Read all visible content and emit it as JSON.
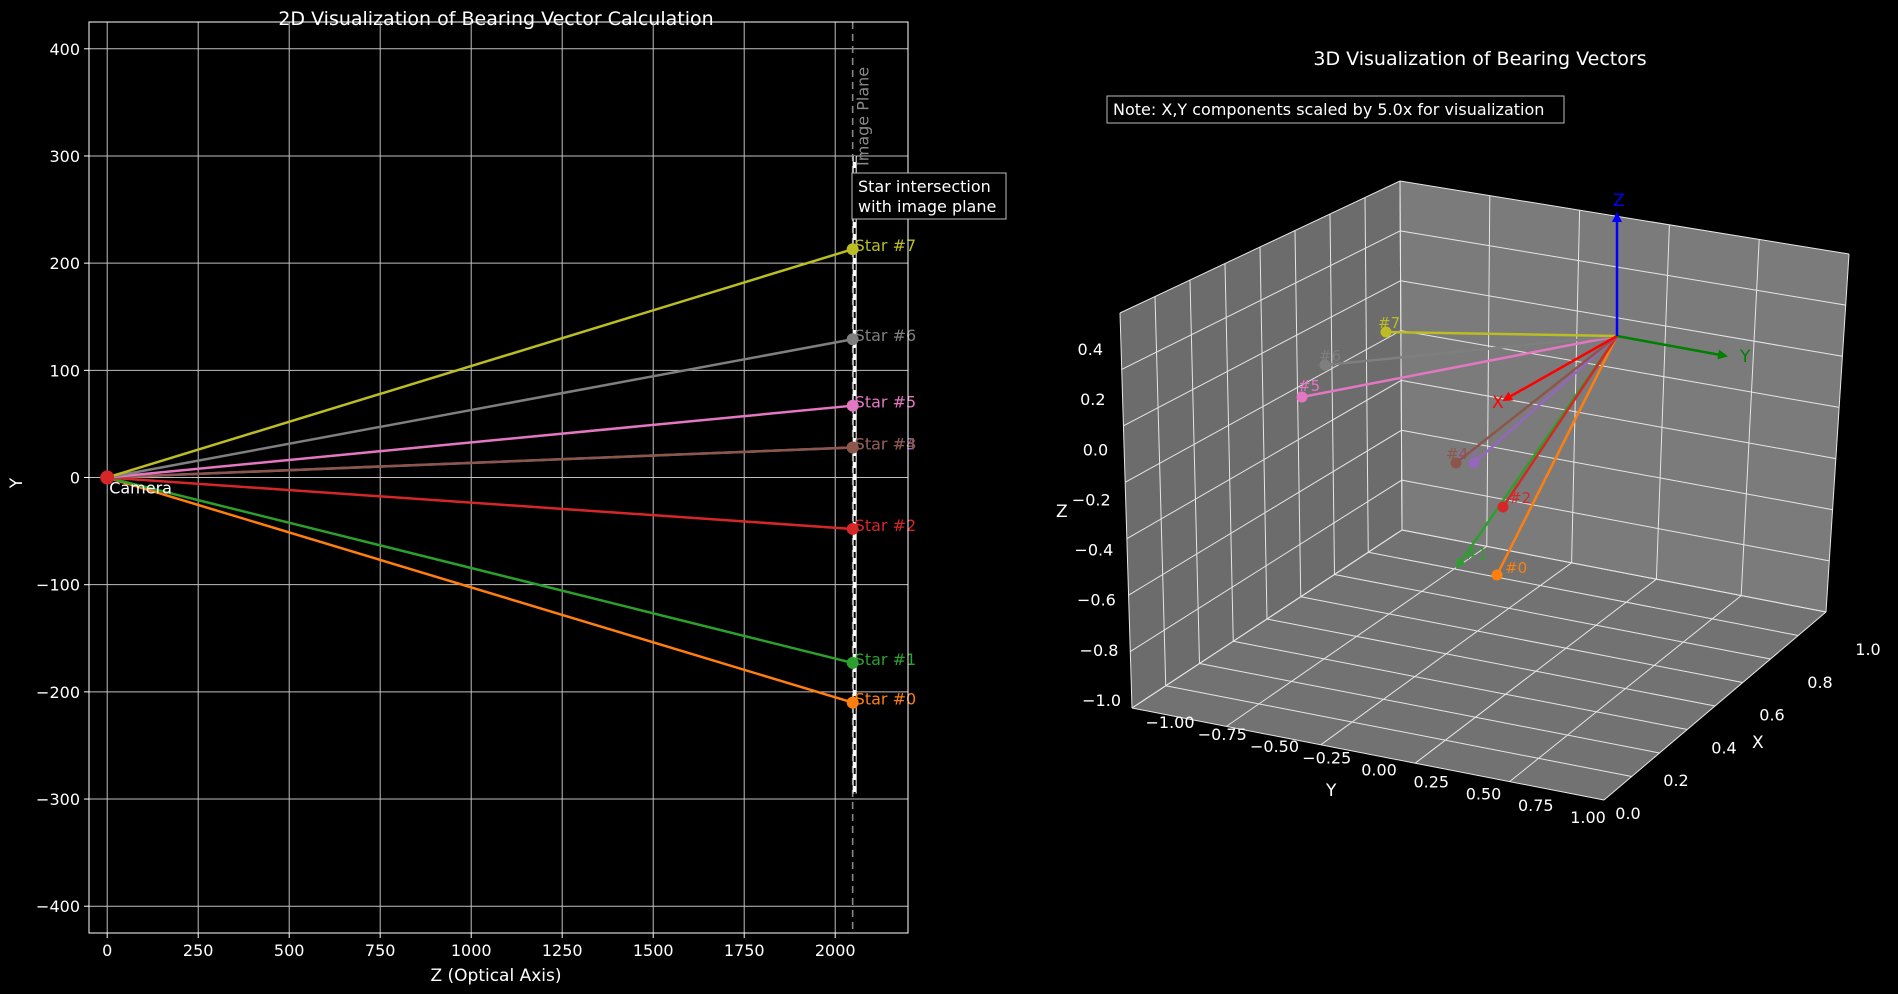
{
  "chart_data": [
    {
      "type": "line",
      "title": "2D Visualization of Bearing Vector Calculation",
      "xlabel": "Z (Optical Axis)",
      "ylabel": "Y",
      "xlim": [
        -50,
        2200
      ],
      "ylim": [
        -425,
        425
      ],
      "xticks": [
        0,
        250,
        500,
        750,
        1000,
        1250,
        1500,
        1750,
        2000
      ],
      "yticks": [
        -400,
        -300,
        -200,
        -100,
        0,
        100,
        200,
        300,
        400
      ],
      "xtick_labels": [
        "0",
        "250",
        "500",
        "750",
        "1000",
        "1250",
        "1500",
        "1750",
        "2000"
      ],
      "ytick_labels": [
        "−400",
        "−300",
        "−200",
        "−100",
        "0",
        "100",
        "200",
        "300",
        "400"
      ],
      "grid": true,
      "camera": {
        "z": 0,
        "y": 0,
        "label": "Camera",
        "color": "#d62728"
      },
      "image_plane": {
        "z": 2048,
        "y_range": [
          -295,
          300
        ],
        "label": "Image Plane"
      },
      "annotation": "Star intersection\nwith image plane",
      "stars": [
        {
          "name": "Star #0",
          "z": 2048,
          "y": -210,
          "color": "#ff7f0e"
        },
        {
          "name": "Star #1",
          "z": 2048,
          "y": -173,
          "color": "#2ca02c"
        },
        {
          "name": "Star #2",
          "z": 2048,
          "y": -48,
          "color": "#d62728"
        },
        {
          "name": "Star #3",
          "z": 2048,
          "y": 28,
          "color": "#9467bd"
        },
        {
          "name": "Star #4",
          "z": 2048,
          "y": 28,
          "color": "#8c564b"
        },
        {
          "name": "Star #5",
          "z": 2048,
          "y": 67,
          "color": "#e377c2"
        },
        {
          "name": "Star #6",
          "z": 2048,
          "y": 129,
          "color": "#7f7f7f"
        },
        {
          "name": "Star #7",
          "z": 2048,
          "y": 213,
          "color": "#bcbd22"
        }
      ]
    },
    {
      "type": "3d-vector",
      "title": "3D Visualization of Bearing Vectors",
      "note": "Note: X,Y components scaled by 5.0x for visualization",
      "xlabel": "X",
      "ylabel": "Y",
      "zlabel": "Z",
      "xlim": [
        0,
        1
      ],
      "ylim": [
        -1,
        1
      ],
      "zlim": [
        -1,
        0.5
      ],
      "xtick_labels": [
        "0.0",
        "0.2",
        "0.4",
        "0.6",
        "0.8",
        "1.0"
      ],
      "ytick_labels": [
        "−1.00",
        "−0.75",
        "−0.50",
        "−0.25",
        "0.00",
        "0.25",
        "0.50",
        "0.75",
        "1.00"
      ],
      "ztick_labels": [
        "−1.0",
        "−0.8",
        "−0.6",
        "−0.4",
        "−0.2",
        "0.0",
        "0.2",
        "0.4"
      ],
      "axes_arrows": [
        {
          "label": "X",
          "color": "#ff0000"
        },
        {
          "label": "Y",
          "color": "#008000"
        },
        {
          "label": "Z",
          "color": "#0000ff"
        }
      ],
      "vectors": [
        {
          "label": "#0",
          "color": "#ff7f0e"
        },
        {
          "label": "#1",
          "color": "#2ca02c"
        },
        {
          "label": "#2",
          "color": "#d62728"
        },
        {
          "label": "#3",
          "color": "#9467bd"
        },
        {
          "label": "#4",
          "color": "#8c564b"
        },
        {
          "label": "#5",
          "color": "#e377c2"
        },
        {
          "label": "#6",
          "color": "#7f7f7f"
        },
        {
          "label": "#7",
          "color": "#bcbd22"
        }
      ]
    }
  ]
}
